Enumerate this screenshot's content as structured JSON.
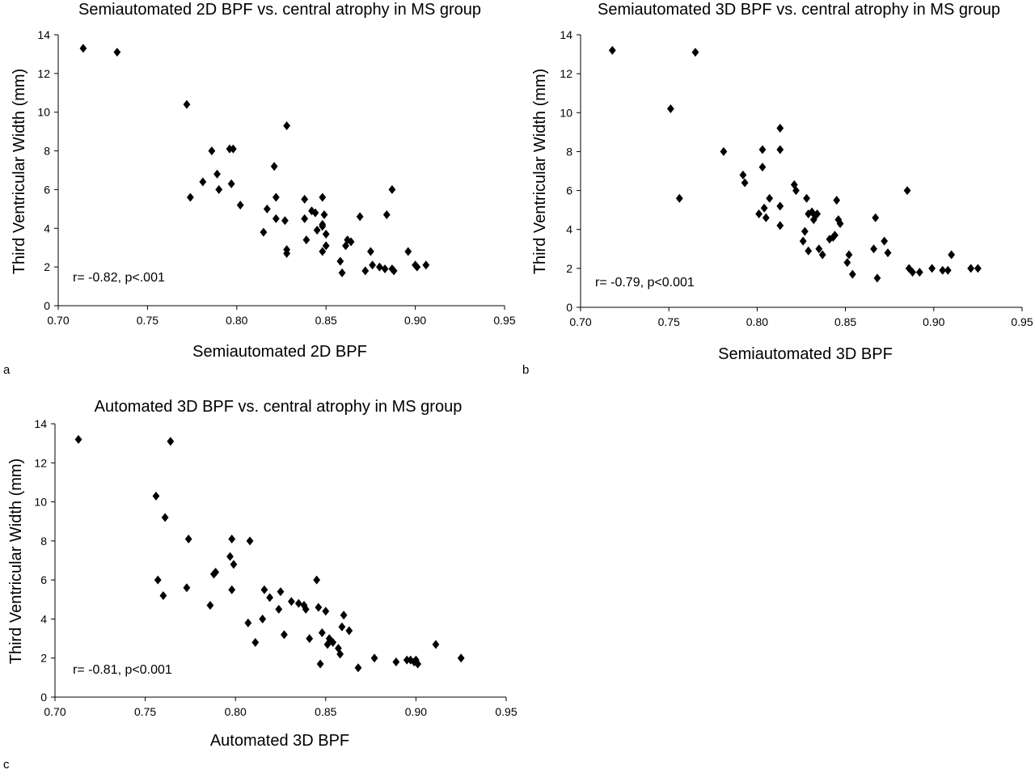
{
  "chart_data": [
    {
      "type": "scatter",
      "panel_label": "a",
      "title": "Semiautomated 2D BPF vs. central atrophy in MS group",
      "xlabel": "Semiautomated 2D BPF",
      "ylabel": "Third Ventricular Width (mm)",
      "xlim": [
        0.7,
        0.95
      ],
      "ylim": [
        0,
        14
      ],
      "xticks": [
        "0.70",
        "0.75",
        "0.80",
        "0.85",
        "0.90",
        "0.95"
      ],
      "yticks": [
        "0",
        "2",
        "4",
        "6",
        "8",
        "10",
        "12",
        "14"
      ],
      "annotation": "r= -0.82, p<.001",
      "marker": "diamond",
      "color": "#000000",
      "points": [
        [
          0.714,
          13.3
        ],
        [
          0.733,
          13.1
        ],
        [
          0.772,
          10.4
        ],
        [
          0.774,
          5.6
        ],
        [
          0.781,
          6.4
        ],
        [
          0.786,
          8.0
        ],
        [
          0.789,
          6.8
        ],
        [
          0.79,
          6.0
        ],
        [
          0.796,
          8.1
        ],
        [
          0.797,
          6.3
        ],
        [
          0.798,
          8.1
        ],
        [
          0.802,
          5.2
        ],
        [
          0.815,
          3.8
        ],
        [
          0.817,
          5.0
        ],
        [
          0.821,
          7.2
        ],
        [
          0.822,
          5.6
        ],
        [
          0.822,
          4.5
        ],
        [
          0.827,
          4.4
        ],
        [
          0.828,
          2.9
        ],
        [
          0.828,
          2.7
        ],
        [
          0.828,
          9.3
        ],
        [
          0.838,
          4.5
        ],
        [
          0.838,
          5.5
        ],
        [
          0.839,
          3.4
        ],
        [
          0.842,
          4.9
        ],
        [
          0.844,
          4.8
        ],
        [
          0.845,
          3.9
        ],
        [
          0.848,
          2.8
        ],
        [
          0.848,
          4.1
        ],
        [
          0.848,
          5.6
        ],
        [
          0.848,
          4.2
        ],
        [
          0.849,
          4.7
        ],
        [
          0.85,
          3.7
        ],
        [
          0.85,
          3.1
        ],
        [
          0.858,
          2.3
        ],
        [
          0.859,
          1.7
        ],
        [
          0.861,
          3.1
        ],
        [
          0.862,
          3.4
        ],
        [
          0.864,
          3.3
        ],
        [
          0.869,
          4.6
        ],
        [
          0.872,
          1.8
        ],
        [
          0.875,
          2.8
        ],
        [
          0.876,
          2.1
        ],
        [
          0.88,
          2.0
        ],
        [
          0.883,
          1.9
        ],
        [
          0.884,
          4.7
        ],
        [
          0.887,
          1.9
        ],
        [
          0.887,
          6.0
        ],
        [
          0.888,
          1.8
        ],
        [
          0.896,
          2.8
        ],
        [
          0.9,
          2.1
        ],
        [
          0.901,
          2.0
        ],
        [
          0.906,
          2.1
        ]
      ]
    },
    {
      "type": "scatter",
      "panel_label": "b",
      "title": "Semiautomated 3D BPF vs. central atrophy in MS group",
      "xlabel": "Semiautomated 3D BPF",
      "ylabel": "Third Ventricular Width (mm)",
      "xlim": [
        0.7,
        0.95
      ],
      "ylim": [
        0,
        14
      ],
      "xticks": [
        "0.70",
        "0.75",
        "0.80",
        "0.85",
        "0.90",
        "0.95"
      ],
      "yticks": [
        "0",
        "2",
        "4",
        "6",
        "8",
        "10",
        "12",
        "14"
      ],
      "annotation": "r= -0.79, p<0.001",
      "marker": "diamond",
      "color": "#000000",
      "points": [
        [
          0.718,
          13.2
        ],
        [
          0.751,
          10.2
        ],
        [
          0.756,
          5.6
        ],
        [
          0.765,
          13.1
        ],
        [
          0.781,
          8.0
        ],
        [
          0.792,
          6.8
        ],
        [
          0.793,
          6.4
        ],
        [
          0.801,
          4.8
        ],
        [
          0.803,
          7.2
        ],
        [
          0.803,
          8.1
        ],
        [
          0.804,
          5.1
        ],
        [
          0.805,
          4.6
        ],
        [
          0.807,
          5.6
        ],
        [
          0.813,
          5.2
        ],
        [
          0.813,
          9.2
        ],
        [
          0.813,
          8.1
        ],
        [
          0.813,
          4.2
        ],
        [
          0.821,
          6.3
        ],
        [
          0.822,
          6.0
        ],
        [
          0.826,
          3.4
        ],
        [
          0.827,
          3.9
        ],
        [
          0.828,
          5.6
        ],
        [
          0.829,
          2.9
        ],
        [
          0.829,
          4.8
        ],
        [
          0.831,
          4.9
        ],
        [
          0.832,
          4.5
        ],
        [
          0.833,
          4.7
        ],
        [
          0.834,
          4.8
        ],
        [
          0.835,
          3.0
        ],
        [
          0.837,
          2.7
        ],
        [
          0.841,
          3.5
        ],
        [
          0.843,
          3.6
        ],
        [
          0.844,
          3.7
        ],
        [
          0.845,
          5.5
        ],
        [
          0.846,
          4.5
        ],
        [
          0.847,
          4.3
        ],
        [
          0.851,
          2.3
        ],
        [
          0.852,
          2.7
        ],
        [
          0.854,
          1.7
        ],
        [
          0.866,
          3.0
        ],
        [
          0.867,
          4.6
        ],
        [
          0.868,
          1.5
        ],
        [
          0.872,
          3.4
        ],
        [
          0.874,
          2.8
        ],
        [
          0.885,
          6.0
        ],
        [
          0.886,
          2.0
        ],
        [
          0.888,
          1.8
        ],
        [
          0.892,
          1.8
        ],
        [
          0.899,
          2.0
        ],
        [
          0.905,
          1.9
        ],
        [
          0.908,
          1.9
        ],
        [
          0.91,
          2.7
        ],
        [
          0.921,
          2.0
        ],
        [
          0.925,
          2.0
        ]
      ]
    },
    {
      "type": "scatter",
      "panel_label": "c",
      "title": "Automated 3D BPF vs. central atrophy in MS group",
      "xlabel": "Automated 3D BPF",
      "ylabel": "Third Ventricular Width (mm)",
      "xlim": [
        0.7,
        0.95
      ],
      "ylim": [
        0,
        14
      ],
      "xticks": [
        "0.70",
        "0.75",
        "0.80",
        "0.85",
        "0.90",
        "0.95"
      ],
      "yticks": [
        "0",
        "2",
        "4",
        "6",
        "8",
        "10",
        "12",
        "14"
      ],
      "annotation": "r= -0.81, p<0.001",
      "marker": "diamond",
      "color": "#000000",
      "points": [
        [
          0.713,
          13.2
        ],
        [
          0.756,
          10.3
        ],
        [
          0.757,
          6.0
        ],
        [
          0.76,
          5.2
        ],
        [
          0.761,
          9.2
        ],
        [
          0.764,
          13.1
        ],
        [
          0.773,
          5.6
        ],
        [
          0.774,
          8.1
        ],
        [
          0.786,
          4.7
        ],
        [
          0.788,
          6.3
        ],
        [
          0.789,
          6.4
        ],
        [
          0.797,
          7.2
        ],
        [
          0.798,
          8.1
        ],
        [
          0.798,
          5.5
        ],
        [
          0.799,
          6.8
        ],
        [
          0.807,
          3.8
        ],
        [
          0.808,
          8.0
        ],
        [
          0.811,
          2.8
        ],
        [
          0.815,
          4.0
        ],
        [
          0.816,
          5.5
        ],
        [
          0.819,
          5.1
        ],
        [
          0.824,
          4.5
        ],
        [
          0.825,
          5.4
        ],
        [
          0.827,
          3.2
        ],
        [
          0.831,
          4.9
        ],
        [
          0.835,
          4.8
        ],
        [
          0.838,
          4.7
        ],
        [
          0.839,
          4.5
        ],
        [
          0.841,
          3.0
        ],
        [
          0.845,
          6.0
        ],
        [
          0.846,
          4.6
        ],
        [
          0.847,
          1.7
        ],
        [
          0.848,
          3.3
        ],
        [
          0.85,
          4.4
        ],
        [
          0.851,
          2.7
        ],
        [
          0.852,
          3.0
        ],
        [
          0.854,
          2.8
        ],
        [
          0.857,
          2.5
        ],
        [
          0.858,
          2.2
        ],
        [
          0.859,
          3.6
        ],
        [
          0.86,
          4.2
        ],
        [
          0.863,
          3.4
        ],
        [
          0.868,
          1.5
        ],
        [
          0.877,
          2.0
        ],
        [
          0.889,
          1.8
        ],
        [
          0.895,
          1.9
        ],
        [
          0.897,
          1.9
        ],
        [
          0.899,
          1.8
        ],
        [
          0.9,
          1.9
        ],
        [
          0.901,
          1.7
        ],
        [
          0.911,
          2.7
        ],
        [
          0.925,
          2.0
        ]
      ]
    }
  ]
}
